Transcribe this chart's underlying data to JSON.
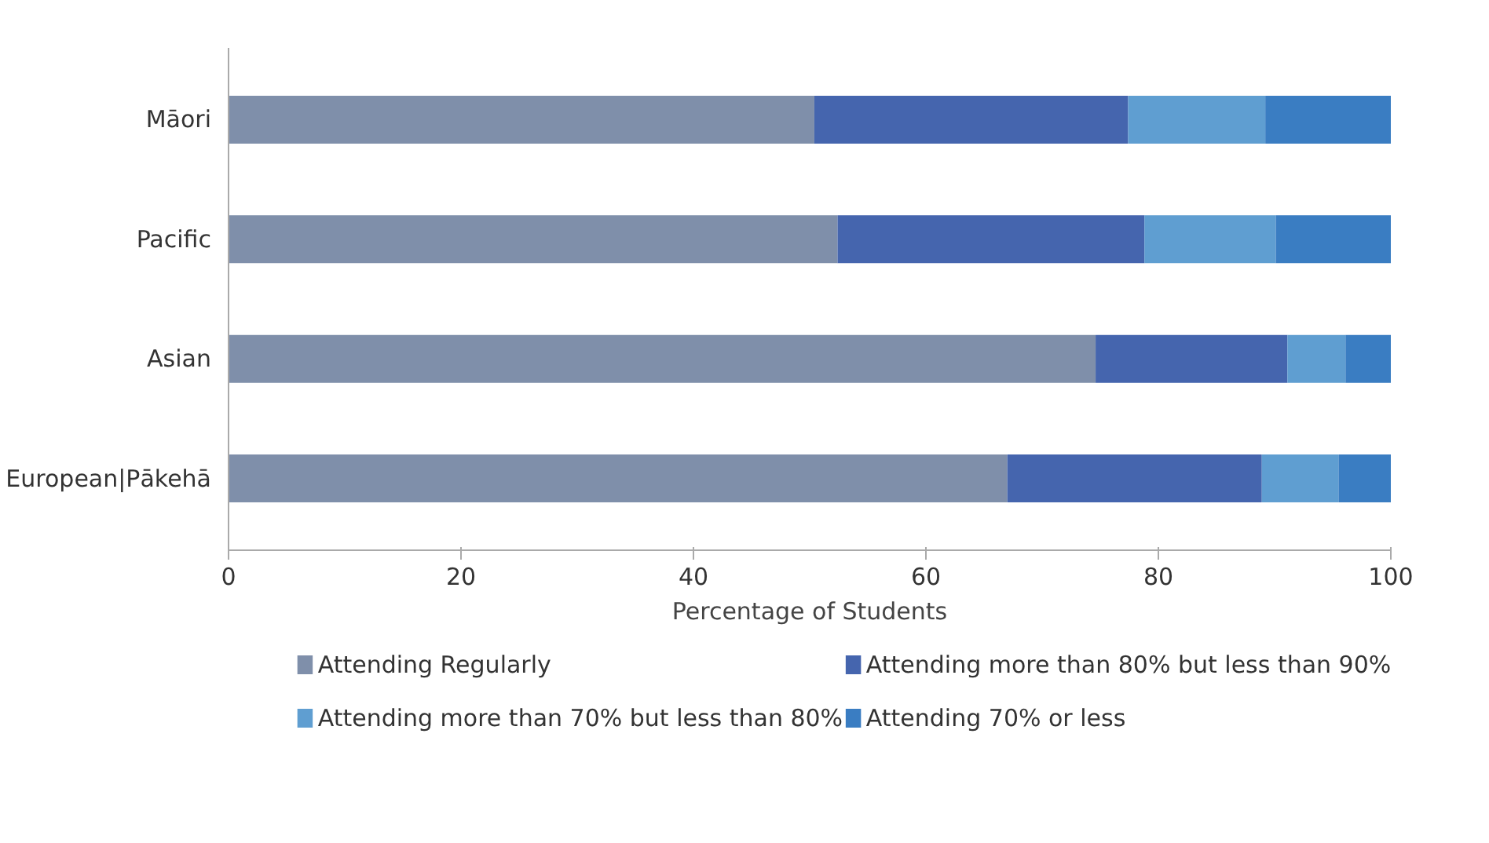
{
  "chart_data": {
    "type": "bar",
    "orientation": "horizontal",
    "stacked": true,
    "categories": [
      "Māori",
      "Pacific",
      "Asian",
      "European|Pākehā"
    ],
    "xlabel": "Percentage of Students",
    "xlim": [
      0,
      100
    ],
    "xticks": [
      0,
      20,
      40,
      60,
      80,
      100
    ],
    "grid": false,
    "legend": "bottom",
    "series": [
      {
        "name": "Attending Regularly",
        "color": "#7f8faa",
        "values": [
          50.4,
          52.4,
          74.6,
          67.0
        ]
      },
      {
        "name": "Attending more than 80% but less than 90%",
        "color": "#4565ae",
        "values": [
          27.0,
          26.4,
          16.5,
          21.9
        ]
      },
      {
        "name": "Attending more than 70% but less than 80%",
        "color": "#5f9ed1",
        "values": [
          11.8,
          11.3,
          5.0,
          6.6
        ]
      },
      {
        "name": "Attending 70% or less",
        "color": "#3a7dc2",
        "values": [
          10.8,
          9.9,
          3.9,
          4.5
        ]
      }
    ]
  }
}
